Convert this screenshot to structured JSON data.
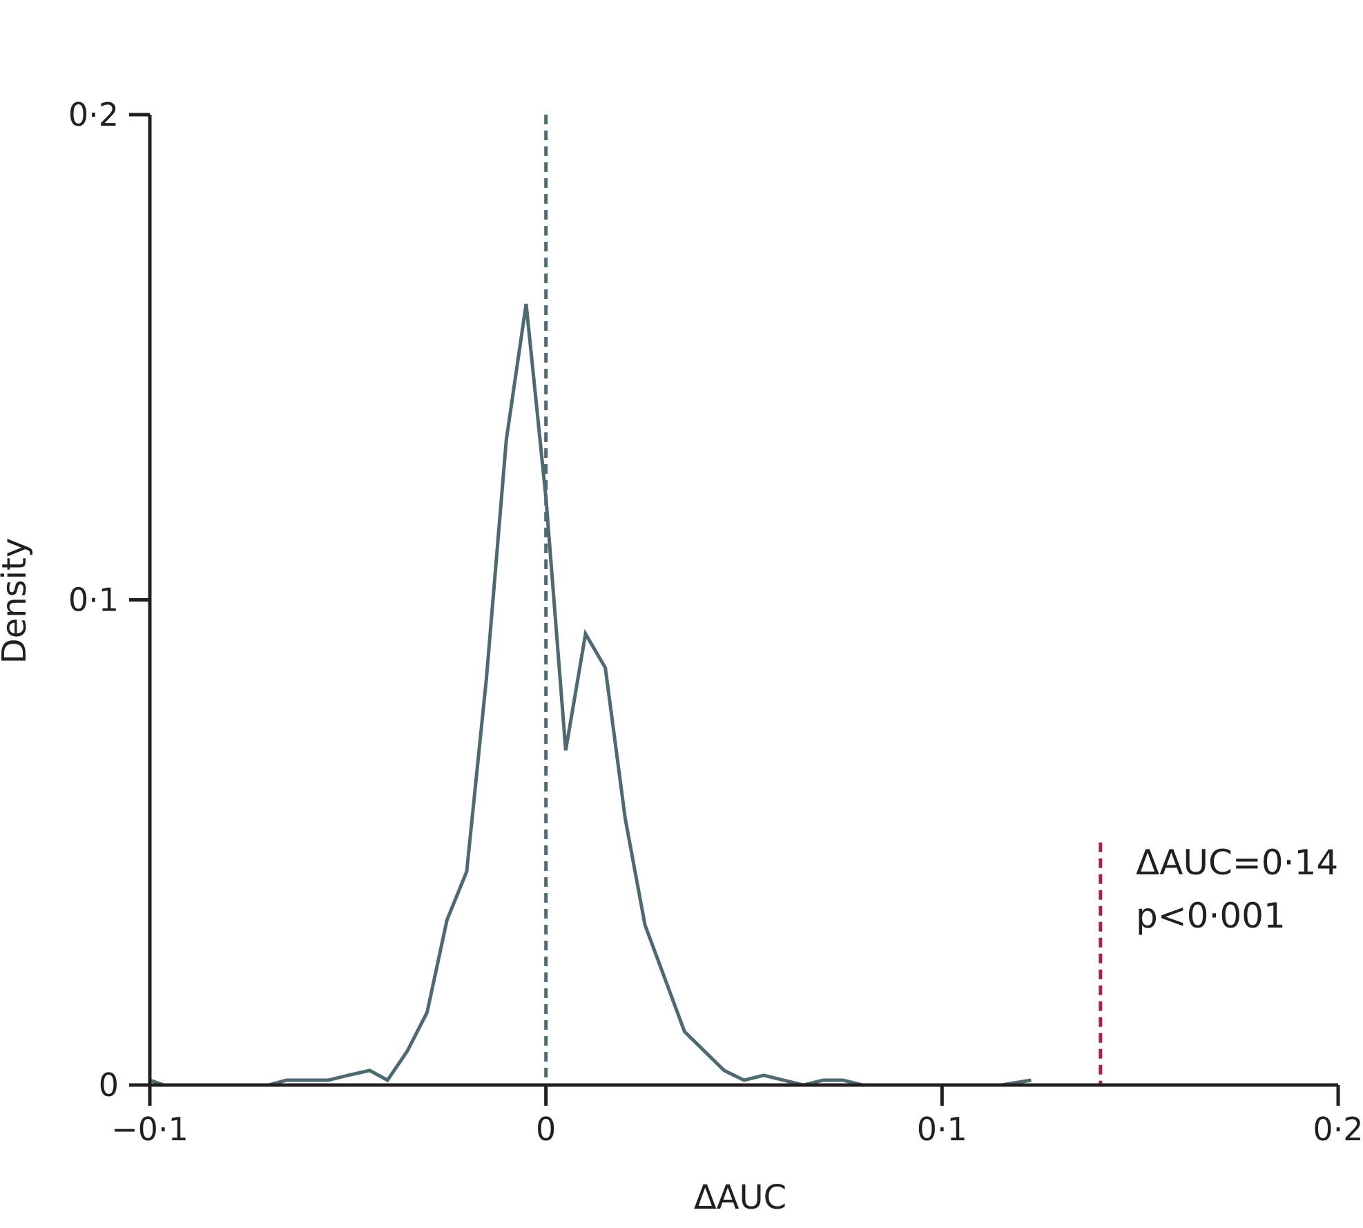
{
  "colors": {
    "axis": "#231f20",
    "density_line": "#4d6a72",
    "null_line": "#4d6a72",
    "observed_line": "#b01c44"
  },
  "chart_data": {
    "type": "line",
    "xlabel": "ΔAUC",
    "ylabel": "Density",
    "xlim": [
      -0.1,
      0.2
    ],
    "ylim": [
      0,
      0.2
    ],
    "x_ticks": [
      -0.1,
      0,
      0.1,
      0.2
    ],
    "x_tick_labels": [
      "−0·1",
      "0",
      "0·1",
      "0·2"
    ],
    "y_ticks": [
      0,
      0.1,
      0.2
    ],
    "y_tick_labels": [
      "0",
      "0·1",
      "0·2"
    ],
    "grid": false,
    "series": [
      {
        "x": [
          -0.1,
          -0.0965,
          -0.094,
          -0.09,
          -0.085,
          -0.08,
          -0.075,
          -0.07,
          -0.0655,
          -0.06,
          -0.055,
          -0.05,
          -0.0445,
          -0.04,
          -0.035,
          -0.03,
          -0.025,
          -0.02,
          -0.015,
          -0.01,
          -0.005,
          0,
          0.005,
          0.01,
          0.015,
          0.02,
          0.025,
          0.03,
          0.035,
          0.04,
          0.045,
          0.05,
          0.055,
          0.06,
          0.065,
          0.07,
          0.075,
          0.08,
          0.085,
          0.09,
          0.095,
          0.1,
          0.105,
          0.11,
          0.115,
          0.1225
        ],
        "values": [
          0.001,
          0,
          0,
          0,
          0,
          0,
          0,
          0,
          0.001,
          0.001,
          0.001,
          0.002,
          0.003,
          0.001,
          0.007,
          0.015,
          0.034,
          0.044,
          0.084,
          0.133,
          0.161,
          0.121,
          0.069,
          0.093,
          0.086,
          0.055,
          0.033,
          0.022,
          0.011,
          0.007,
          0.003,
          0.001,
          0.002,
          0.001,
          0,
          0.001,
          0.001,
          0,
          0,
          0,
          0,
          0,
          0,
          0,
          0,
          0.001
        ]
      }
    ],
    "reference_lines": [
      {
        "x": 0,
        "style": "dashed"
      },
      {
        "x": 0.14,
        "style": "dashed"
      }
    ],
    "annotations": [
      "ΔAUC=0·14",
      "p<0·001"
    ]
  }
}
